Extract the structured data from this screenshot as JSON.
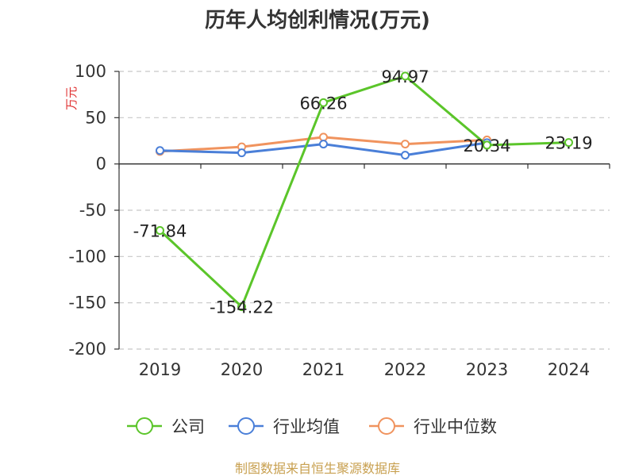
{
  "chart_data": {
    "type": "line",
    "title": "历年人均创利情况(万元)",
    "ylabel": "万元",
    "xlabel": "",
    "categories": [
      "2019",
      "2020",
      "2021",
      "2022",
      "2023",
      "2024"
    ],
    "ylim": [
      -200,
      100
    ],
    "yticks": [
      100,
      50,
      0,
      -50,
      -100,
      -150,
      -200
    ],
    "grid": true,
    "legend_position": "bottom",
    "series": [
      {
        "name": "公司",
        "color": "#5bc52a",
        "values": [
          -71.84,
          -154.22,
          66.26,
          94.97,
          20.34,
          23.19
        ],
        "labels": [
          "-71.84",
          "-154.22",
          "66.26",
          "94.97",
          "20.34",
          "23.19"
        ]
      },
      {
        "name": "行业均值",
        "color": "#4a7fd8",
        "values": [
          14.5,
          12.0,
          21.5,
          9.5,
          23.0,
          null
        ]
      },
      {
        "name": "行业中位数",
        "color": "#f0935e",
        "values": [
          13.5,
          18.5,
          29.0,
          21.5,
          26.0,
          null
        ]
      }
    ]
  },
  "source": "制图数据来自恒生聚源数据库"
}
